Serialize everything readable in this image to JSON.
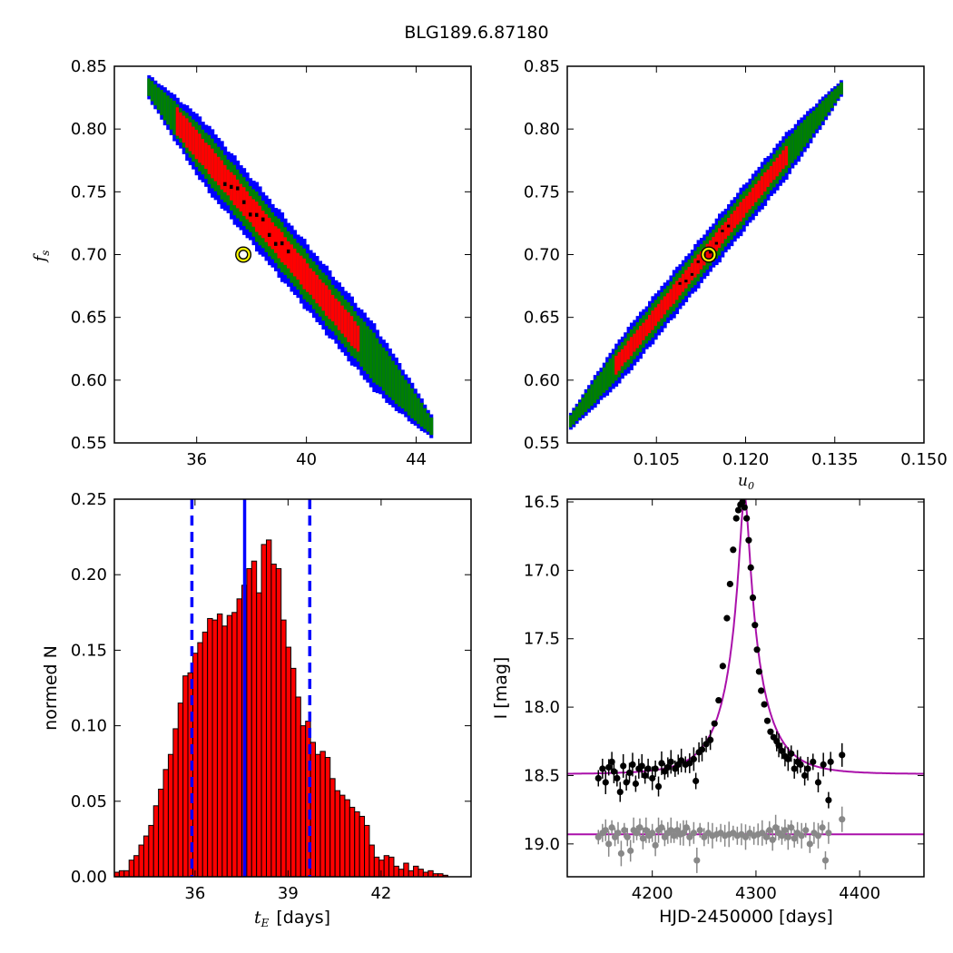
{
  "figure": {
    "title": "BLG189.6.87180"
  },
  "chart_data": [
    {
      "id": "fs-vs-tE",
      "type": "heatmap",
      "xlabel": "",
      "ylabel": "f",
      "ylabel_sub": "s",
      "xlim": [
        33,
        46
      ],
      "ylim": [
        0.55,
        0.85
      ],
      "x_ticks": [
        36,
        40,
        44
      ],
      "y_ticks": [
        0.55,
        0.6,
        0.65,
        0.7,
        0.75,
        0.8,
        0.85
      ],
      "y_tick_labels": [
        "0.55",
        "0.60",
        "0.65",
        "0.70",
        "0.75",
        "0.80",
        "0.85"
      ],
      "colors": {
        "outer": "#0000ff",
        "middle": "#008000",
        "inner": "#ff0000",
        "core": "#000000",
        "best_fit": "#ffff00"
      },
      "band": {
        "start": [
          34.2,
          0.835
        ],
        "end": [
          44.6,
          0.562
        ],
        "half_widths_y": {
          "outer": 0.026,
          "middle": 0.019,
          "inner": 0.011
        },
        "inner_range": [
          35.2,
          42.0
        ],
        "core_range": [
          37.0,
          39.5
        ]
      },
      "best_fit": {
        "x": 37.7,
        "y": 0.7
      }
    },
    {
      "id": "fs-vs-u0",
      "type": "heatmap",
      "xlabel": "u",
      "xlabel_sub": "0",
      "ylabel": "",
      "xlim": [
        0.09,
        0.15
      ],
      "ylim": [
        0.55,
        0.85
      ],
      "x_ticks": [
        0.105,
        0.12,
        0.135,
        0.15
      ],
      "x_tick_labels": [
        "0.105",
        "0.120",
        "0.135",
        "0.150"
      ],
      "y_ticks": [
        0.55,
        0.6,
        0.65,
        0.7,
        0.75,
        0.8,
        0.85
      ],
      "y_tick_labels": [
        "0.55",
        "0.60",
        "0.65",
        "0.70",
        "0.75",
        "0.80",
        "0.85"
      ],
      "colors": {
        "outer": "#0000ff",
        "middle": "#008000",
        "inner": "#ff0000",
        "core": "#000000",
        "best_fit": "#ffff00"
      },
      "band": {
        "start": [
          0.0903,
          0.566
        ],
        "end": [
          0.1363,
          0.834
        ],
        "half_widths_y": {
          "outer": 0.018,
          "middle": 0.013,
          "inner": 0.007
        },
        "inner_range": [
          0.098,
          0.127
        ],
        "core_range": [
          0.108,
          0.118
        ]
      },
      "best_fit": {
        "x": 0.1138,
        "y": 0.7
      }
    },
    {
      "id": "tE-histogram",
      "type": "bar",
      "xlabel_var": "t",
      "xlabel_sub": "E",
      "xlabel": "[days]",
      "ylabel": "normed N",
      "xlim": [
        33.4,
        44.9
      ],
      "ylim": [
        0,
        0.25
      ],
      "x_ticks": [
        36,
        39,
        42
      ],
      "y_ticks": [
        0,
        0.05,
        0.1,
        0.15,
        0.2,
        0.25
      ],
      "y_tick_labels": [
        "0.00",
        "0.05",
        "0.10",
        "0.15",
        "0.20",
        "0.25"
      ],
      "bin_start": 33.4,
      "bin_width": 0.1581,
      "values": [
        0.003,
        0.004,
        0.004,
        0.011,
        0.014,
        0.021,
        0.027,
        0.034,
        0.047,
        0.058,
        0.071,
        0.081,
        0.098,
        0.115,
        0.133,
        0.135,
        0.148,
        0.155,
        0.162,
        0.171,
        0.17,
        0.174,
        0.166,
        0.173,
        0.175,
        0.184,
        0.193,
        0.204,
        0.209,
        0.188,
        0.22,
        0.223,
        0.207,
        0.204,
        0.17,
        0.152,
        0.138,
        0.119,
        0.1,
        0.103,
        0.089,
        0.081,
        0.083,
        0.079,
        0.065,
        0.057,
        0.054,
        0.051,
        0.046,
        0.043,
        0.04,
        0.034,
        0.021,
        0.013,
        0.011,
        0.014,
        0.013,
        0.007,
        0.005,
        0.009,
        0.004,
        0.007,
        0.005,
        0.003,
        0.004,
        0.002,
        0.002,
        0.001
      ],
      "bar_color": "#ff0000",
      "median": 37.6,
      "lower": 35.9,
      "upper": 39.7,
      "line_color": "#0000ff"
    },
    {
      "id": "light-curve",
      "type": "scatter",
      "xlabel": "HJD-2450000 [days]",
      "ylabel": "I [mag]",
      "xlim": [
        4118,
        4462
      ],
      "ylim": [
        19.24,
        16.48
      ],
      "x_ticks": [
        4200,
        4300,
        4400
      ],
      "y_ticks": [
        16.5,
        17.0,
        17.5,
        18.0,
        18.5,
        19.0
      ],
      "y_tick_labels": [
        "16.5",
        "17.0",
        "17.5",
        "18.0",
        "18.5",
        "19.0"
      ],
      "model": {
        "t0": 4289,
        "tE": 37.6,
        "u0": 0.1138,
        "base_mag": 18.49,
        "f_s": 0.7,
        "color": "#aa10aa"
      },
      "residual_baseline": 18.93,
      "data_points": [
        [
          4148,
          18.52
        ],
        [
          4152,
          18.45
        ],
        [
          4155,
          18.55
        ],
        [
          4158,
          18.44
        ],
        [
          4161,
          18.4
        ],
        [
          4163,
          18.47
        ],
        [
          4166,
          18.52
        ],
        [
          4169,
          18.62
        ],
        [
          4172,
          18.43
        ],
        [
          4175,
          18.55
        ],
        [
          4178,
          18.48
        ],
        [
          4181,
          18.42
        ],
        [
          4184,
          18.56
        ],
        [
          4187,
          18.45
        ],
        [
          4190,
          18.43
        ],
        [
          4193,
          18.5
        ],
        [
          4196,
          18.45
        ],
        [
          4200,
          18.52
        ],
        [
          4203,
          18.45
        ],
        [
          4206,
          18.58
        ],
        [
          4209,
          18.41
        ],
        [
          4212,
          18.47
        ],
        [
          4215,
          18.44
        ],
        [
          4218,
          18.4
        ],
        [
          4222,
          18.45
        ],
        [
          4225,
          18.42
        ],
        [
          4228,
          18.39
        ],
        [
          4232,
          18.42
        ],
        [
          4236,
          18.41
        ],
        [
          4240,
          18.38
        ],
        [
          4242,
          18.54
        ],
        [
          4245,
          18.33
        ],
        [
          4248,
          18.31
        ],
        [
          4252,
          18.27
        ],
        [
          4256,
          18.24
        ],
        [
          4260,
          18.12
        ],
        [
          4264,
          17.95
        ],
        [
          4268,
          17.7
        ],
        [
          4272,
          17.35
        ],
        [
          4275,
          17.1
        ],
        [
          4278,
          16.85
        ],
        [
          4281,
          16.62
        ],
        [
          4283,
          16.56
        ],
        [
          4285,
          16.52
        ],
        [
          4287,
          16.5
        ],
        [
          4289,
          16.54
        ],
        [
          4291,
          16.62
        ],
        [
          4293,
          16.78
        ],
        [
          4295,
          16.98
        ],
        [
          4297,
          17.2
        ],
        [
          4299,
          17.4
        ],
        [
          4301,
          17.58
        ],
        [
          4303,
          17.74
        ],
        [
          4305,
          17.88
        ],
        [
          4308,
          17.98
        ],
        [
          4311,
          18.1
        ],
        [
          4314,
          18.18
        ],
        [
          4317,
          18.22
        ],
        [
          4320,
          18.25
        ],
        [
          4322,
          18.28
        ],
        [
          4325,
          18.32
        ],
        [
          4328,
          18.36
        ],
        [
          4331,
          18.38
        ],
        [
          4334,
          18.34
        ],
        [
          4337,
          18.45
        ],
        [
          4340,
          18.4
        ],
        [
          4343,
          18.42
        ],
        [
          4347,
          18.5
        ],
        [
          4350,
          18.45
        ],
        [
          4355,
          18.4
        ],
        [
          4360,
          18.55
        ],
        [
          4365,
          18.42
        ],
        [
          4370,
          18.68
        ],
        [
          4372,
          18.4
        ],
        [
          4383,
          18.35
        ]
      ],
      "residual_points": [
        [
          4148,
          18.95
        ],
        [
          4152,
          18.92
        ],
        [
          4155,
          18.9
        ],
        [
          4158,
          19.0
        ],
        [
          4161,
          18.88
        ],
        [
          4164,
          18.95
        ],
        [
          4167,
          18.92
        ],
        [
          4170,
          19.07
        ],
        [
          4173,
          18.9
        ],
        [
          4176,
          18.95
        ],
        [
          4179,
          19.05
        ],
        [
          4182,
          18.9
        ],
        [
          4185,
          18.92
        ],
        [
          4188,
          18.88
        ],
        [
          4191,
          18.96
        ],
        [
          4194,
          18.9
        ],
        [
          4197,
          18.94
        ],
        [
          4200,
          18.92
        ],
        [
          4203,
          19.01
        ],
        [
          4206,
          18.9
        ],
        [
          4209,
          18.88
        ],
        [
          4212,
          18.95
        ],
        [
          4215,
          18.92
        ],
        [
          4218,
          18.9
        ],
        [
          4221,
          18.94
        ],
        [
          4224,
          18.9
        ],
        [
          4227,
          18.93
        ],
        [
          4230,
          18.92
        ],
        [
          4233,
          18.88
        ],
        [
          4236,
          18.95
        ],
        [
          4240,
          18.92
        ],
        [
          4243,
          19.12
        ],
        [
          4246,
          18.9
        ],
        [
          4250,
          18.95
        ],
        [
          4254,
          18.92
        ],
        [
          4258,
          18.94
        ],
        [
          4262,
          18.93
        ],
        [
          4266,
          18.92
        ],
        [
          4270,
          18.94
        ],
        [
          4274,
          18.93
        ],
        [
          4278,
          18.92
        ],
        [
          4282,
          18.94
        ],
        [
          4286,
          18.93
        ],
        [
          4290,
          18.95
        ],
        [
          4294,
          18.92
        ],
        [
          4298,
          18.94
        ],
        [
          4302,
          18.93
        ],
        [
          4306,
          18.92
        ],
        [
          4310,
          18.95
        ],
        [
          4313,
          18.9
        ],
        [
          4316,
          18.97
        ],
        [
          4319,
          18.88
        ],
        [
          4322,
          18.92
        ],
        [
          4325,
          18.94
        ],
        [
          4328,
          18.9
        ],
        [
          4331,
          18.95
        ],
        [
          4334,
          18.88
        ],
        [
          4337,
          18.96
        ],
        [
          4340,
          18.92
        ],
        [
          4344,
          18.94
        ],
        [
          4348,
          18.9
        ],
        [
          4352,
          19.0
        ],
        [
          4356,
          18.92
        ],
        [
          4360,
          18.94
        ],
        [
          4364,
          18.88
        ],
        [
          4367,
          19.12
        ],
        [
          4370,
          18.92
        ],
        [
          4383,
          18.82
        ]
      ]
    }
  ]
}
